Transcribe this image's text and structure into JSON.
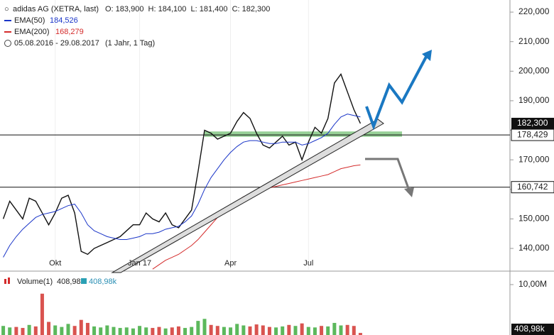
{
  "header": {
    "title": "adidas AG (XETRA, last)",
    "ohlc": "O: 183,900  H: 184,100  L: 181,400  C: 182,300",
    "range": "05.08.2016 - 29.08.2017",
    "period": "(1 Jahr, 1 Tag)"
  },
  "chart_data": [
    {
      "type": "line",
      "categories": [
        null,
        null,
        null,
        null,
        null,
        null,
        null,
        null,
        "Okt",
        null,
        null,
        null,
        null,
        null,
        null,
        null,
        null,
        null,
        null,
        null,
        null,
        "Jan 17",
        null,
        null,
        null,
        null,
        null,
        null,
        null,
        null,
        null,
        null,
        null,
        null,
        null,
        "Apr",
        null,
        null,
        null,
        null,
        null,
        null,
        null,
        null,
        null,
        null,
        null,
        "Jul",
        null,
        null,
        null,
        null,
        null,
        null,
        null,
        null
      ],
      "series": [
        {
          "name": "adidas AG",
          "color": "#111111",
          "values": [
            150000,
            156000,
            153000,
            150000,
            157000,
            156000,
            152000,
            148000,
            152000,
            157000,
            158000,
            152000,
            139000,
            138000,
            140000,
            141000,
            142000,
            143000,
            144000,
            146000,
            148000,
            148000,
            152000,
            150000,
            149000,
            152000,
            148000,
            147000,
            150000,
            153000,
            166000,
            180000,
            179000,
            177000,
            178000,
            179000,
            183000,
            186000,
            184000,
            179000,
            175000,
            174000,
            176000,
            178000,
            175000,
            176000,
            170000,
            176000,
            181000,
            179000,
            184000,
            196000,
            199000,
            193000,
            187000,
            182300
          ]
        },
        {
          "name": "EMA(50)",
          "last_label": "184,526",
          "color": "#1a35c8",
          "values": [
            137000,
            141000,
            144000,
            146500,
            148500,
            150500,
            151500,
            152000,
            152500,
            153500,
            154500,
            155000,
            152000,
            148000,
            146000,
            145000,
            144000,
            143500,
            143000,
            143000,
            143500,
            144000,
            145000,
            145000,
            145500,
            146500,
            147000,
            147500,
            149000,
            151000,
            155000,
            160000,
            164000,
            167000,
            170000,
            172500,
            174500,
            176000,
            176500,
            176500,
            176000,
            175500,
            175500,
            176000,
            176000,
            176000,
            175000,
            175500,
            176500,
            177500,
            179000,
            182000,
            184500,
            185500,
            185000,
            184526
          ]
        },
        {
          "name": "EMA(200)",
          "last_label": "168,279",
          "color": "#d42b2b",
          "values": [
            null,
            null,
            null,
            null,
            null,
            null,
            null,
            null,
            null,
            null,
            null,
            null,
            null,
            null,
            null,
            null,
            null,
            null,
            null,
            null,
            null,
            null,
            null,
            133000,
            134500,
            136000,
            137000,
            138000,
            139500,
            141000,
            143000,
            145500,
            148000,
            150500,
            152500,
            154500,
            156000,
            157500,
            158500,
            159500,
            160000,
            160500,
            161000,
            161500,
            162000,
            162500,
            163000,
            163500,
            164000,
            164500,
            165000,
            166000,
            167000,
            167500,
            168000,
            168279
          ]
        }
      ],
      "ylim": [
        132800,
        224100
      ],
      "yticks": [
        {
          "value": 140000,
          "label": "140,000"
        },
        {
          "value": 150000,
          "label": "150,000"
        },
        {
          "value": 160000,
          "label": "160,000"
        },
        {
          "value": 170000,
          "label": "170,000"
        },
        {
          "value": 180000,
          "label": "180,000"
        },
        {
          "value": 190000,
          "label": "190,000"
        },
        {
          "value": 200000,
          "label": "200,000"
        },
        {
          "value": 210000,
          "label": "210,000"
        },
        {
          "value": 220000,
          "label": "220,000"
        }
      ],
      "last": {
        "value": 182300,
        "label": "182,300"
      },
      "hlines": [
        {
          "value": 178429,
          "label": "178,429"
        },
        {
          "value": 160742,
          "label": "160,742"
        }
      ],
      "support_zone": [
        177800,
        179600
      ]
    },
    {
      "type": "bar",
      "name": "Volume(1)",
      "last_label": "408,98k",
      "values": [
        1800000,
        1500000,
        1600000,
        1400000,
        2000000,
        1700000,
        8200000,
        2600000,
        1900000,
        1600000,
        2200000,
        1800000,
        3000000,
        2400000,
        1700000,
        1500000,
        1900000,
        1600000,
        1400000,
        1500000,
        1300000,
        1800000,
        1500000,
        1400000,
        1600000,
        1300000,
        1500000,
        1700000,
        1400000,
        1600000,
        2800000,
        3200000,
        2000000,
        1800000,
        1600000,
        1500000,
        2200000,
        1900000,
        1700000,
        2100000,
        1900000,
        1600000,
        1500000,
        1700000,
        2000000,
        1800000,
        2300000,
        1600000,
        1500000,
        1800000,
        1700000,
        2400000,
        1900000,
        2000000,
        1800000,
        408980
      ],
      "ylim": [
        0,
        12250000
      ],
      "yticks": [
        {
          "value": 10000000,
          "label": "10,00M"
        }
      ]
    }
  ]
}
